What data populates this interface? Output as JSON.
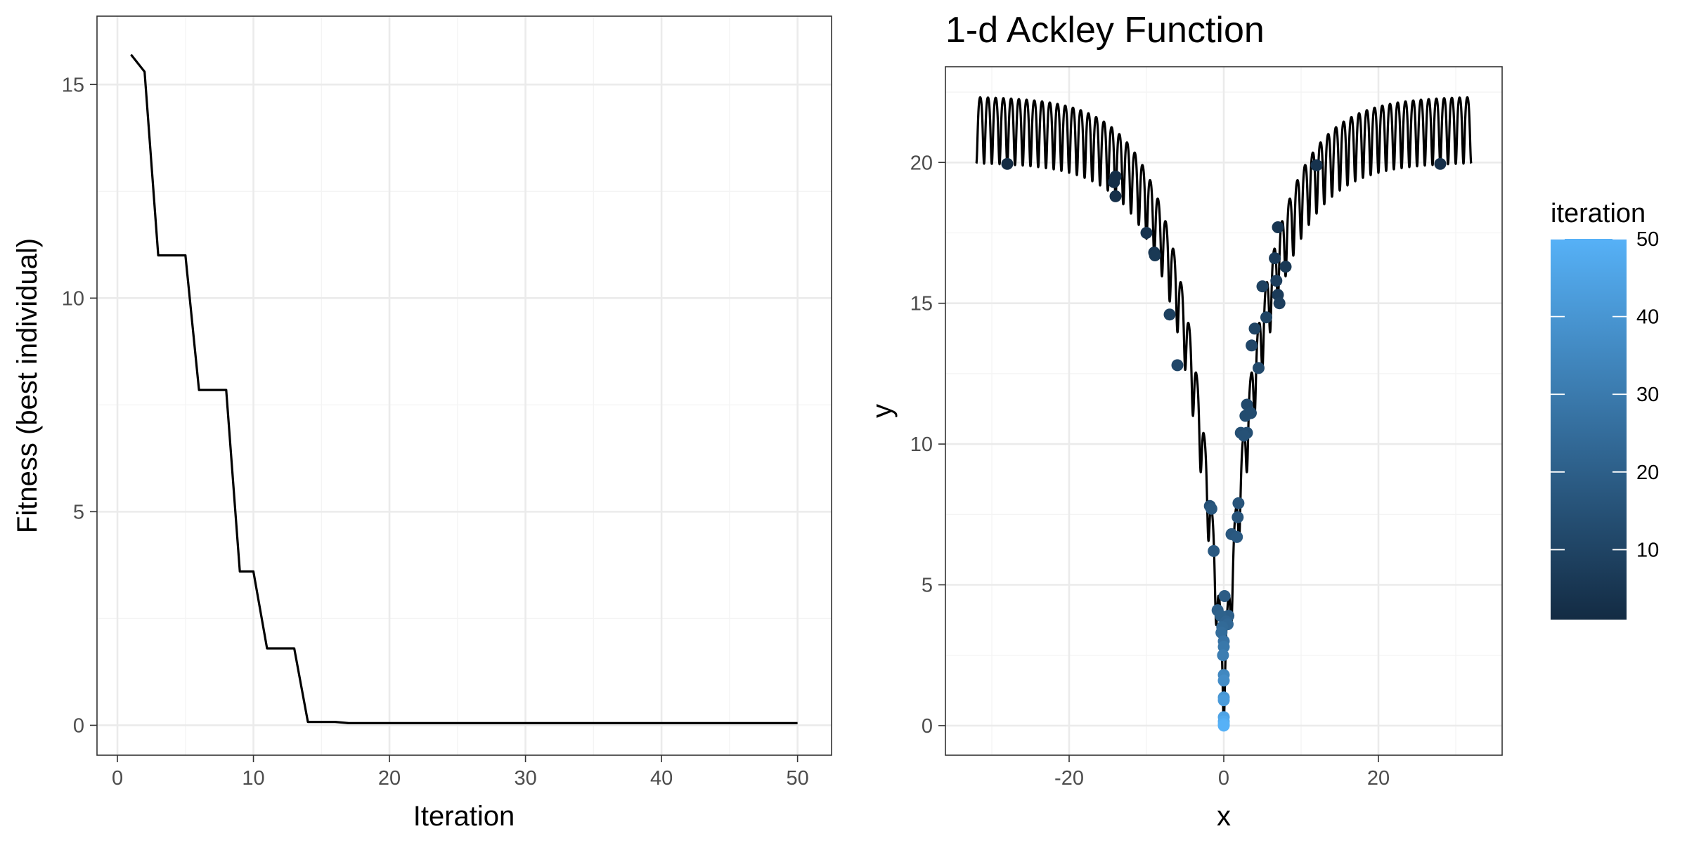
{
  "chart_data": [
    {
      "type": "line",
      "title": "",
      "xlabel": "Iteration",
      "ylabel": "Fitness (best individual)",
      "xlim": [
        -1.5,
        52.5
      ],
      "ylim": [
        -0.7,
        16.6
      ],
      "x_ticks": [
        0,
        10,
        20,
        30,
        40,
        50
      ],
      "y_ticks": [
        0,
        5,
        10,
        15
      ],
      "grid": true,
      "series": [
        {
          "x": [
            1,
            2,
            3,
            4,
            5,
            6,
            7,
            8,
            9,
            10,
            11,
            12,
            13,
            14,
            15,
            16,
            17,
            18,
            19,
            20,
            21,
            22,
            23,
            24,
            25,
            26,
            27,
            28,
            29,
            30,
            31,
            32,
            33,
            34,
            35,
            36,
            37,
            38,
            39,
            40,
            41,
            42,
            43,
            44,
            45,
            46,
            47,
            48,
            49,
            50
          ],
          "y": [
            15.7,
            15.3,
            11.0,
            11.0,
            11.0,
            7.85,
            7.85,
            7.85,
            3.6,
            3.6,
            1.8,
            1.8,
            1.8,
            0.08,
            0.08,
            0.08,
            0.05,
            0.05,
            0.05,
            0.05,
            0.05,
            0.05,
            0.05,
            0.05,
            0.05,
            0.05,
            0.05,
            0.05,
            0.05,
            0.05,
            0.05,
            0.05,
            0.05,
            0.05,
            0.05,
            0.05,
            0.05,
            0.05,
            0.05,
            0.05,
            0.05,
            0.05,
            0.05,
            0.05,
            0.05,
            0.05,
            0.05,
            0.05,
            0.05,
            0.05
          ],
          "color": "#000000"
        }
      ]
    },
    {
      "type": "scatter",
      "title": "1-d Ackley Function",
      "xlabel": "x",
      "ylabel": "y",
      "xlim": [
        -36,
        36
      ],
      "ylim": [
        -1.05,
        23.4
      ],
      "x_ticks": [
        -20,
        0,
        20
      ],
      "y_ticks": [
        0,
        5,
        10,
        15,
        20
      ],
      "grid": true,
      "curve": {
        "function": "ackley-1d",
        "x_range": [
          -32,
          32
        ],
        "color": "#000000"
      },
      "points": [
        {
          "x": -28.0,
          "y": 19.95,
          "iteration": 1
        },
        {
          "x": -14.0,
          "y": 19.5,
          "iteration": 2
        },
        {
          "x": -14.2,
          "y": 19.3,
          "iteration": 2
        },
        {
          "x": -14.0,
          "y": 18.8,
          "iteration": 3
        },
        {
          "x": 28.0,
          "y": 19.95,
          "iteration": 3
        },
        {
          "x": 12.0,
          "y": 19.9,
          "iteration": 4
        },
        {
          "x": -10.0,
          "y": 17.5,
          "iteration": 4
        },
        {
          "x": 7.0,
          "y": 17.7,
          "iteration": 5
        },
        {
          "x": -9.0,
          "y": 16.8,
          "iteration": 5
        },
        {
          "x": -8.9,
          "y": 16.7,
          "iteration": 6
        },
        {
          "x": 8.0,
          "y": 16.3,
          "iteration": 6
        },
        {
          "x": 6.6,
          "y": 16.6,
          "iteration": 7
        },
        {
          "x": 7.0,
          "y": 15.3,
          "iteration": 7
        },
        {
          "x": 7.2,
          "y": 15.0,
          "iteration": 8
        },
        {
          "x": 6.8,
          "y": 15.8,
          "iteration": 8
        },
        {
          "x": 5.0,
          "y": 15.6,
          "iteration": 9
        },
        {
          "x": -7.0,
          "y": 14.6,
          "iteration": 9
        },
        {
          "x": 5.5,
          "y": 14.5,
          "iteration": 10
        },
        {
          "x": 4.0,
          "y": 14.1,
          "iteration": 10
        },
        {
          "x": 3.6,
          "y": 13.5,
          "iteration": 11
        },
        {
          "x": -6.0,
          "y": 12.8,
          "iteration": 11
        },
        {
          "x": 4.5,
          "y": 12.7,
          "iteration": 12
        },
        {
          "x": 3.0,
          "y": 11.4,
          "iteration": 12
        },
        {
          "x": 2.8,
          "y": 11.0,
          "iteration": 13
        },
        {
          "x": 3.5,
          "y": 11.1,
          "iteration": 13
        },
        {
          "x": 2.2,
          "y": 10.4,
          "iteration": 14
        },
        {
          "x": 3.0,
          "y": 10.4,
          "iteration": 14
        },
        {
          "x": 2.6,
          "y": 10.3,
          "iteration": 15
        },
        {
          "x": -1.8,
          "y": 7.8,
          "iteration": 15
        },
        {
          "x": 1.9,
          "y": 7.9,
          "iteration": 16
        },
        {
          "x": 1.8,
          "y": 7.4,
          "iteration": 16
        },
        {
          "x": -1.6,
          "y": 7.7,
          "iteration": 17
        },
        {
          "x": 1.0,
          "y": 6.8,
          "iteration": 17
        },
        {
          "x": 1.7,
          "y": 6.7,
          "iteration": 18
        },
        {
          "x": -1.3,
          "y": 6.2,
          "iteration": 18
        },
        {
          "x": 0.1,
          "y": 4.6,
          "iteration": 19
        },
        {
          "x": -0.8,
          "y": 4.1,
          "iteration": 20
        },
        {
          "x": 0.6,
          "y": 3.9,
          "iteration": 20
        },
        {
          "x": -0.4,
          "y": 3.9,
          "iteration": 21
        },
        {
          "x": 0.3,
          "y": 3.7,
          "iteration": 22
        },
        {
          "x": 0.5,
          "y": 3.6,
          "iteration": 23
        },
        {
          "x": -0.2,
          "y": 3.5,
          "iteration": 24
        },
        {
          "x": -0.3,
          "y": 3.3,
          "iteration": 25
        },
        {
          "x": 0.0,
          "y": 3.0,
          "iteration": 27
        },
        {
          "x": 0.0,
          "y": 2.8,
          "iteration": 29
        },
        {
          "x": -0.1,
          "y": 2.5,
          "iteration": 31
        },
        {
          "x": 0.0,
          "y": 1.8,
          "iteration": 35
        },
        {
          "x": 0.0,
          "y": 1.6,
          "iteration": 37
        },
        {
          "x": 0.0,
          "y": 1.0,
          "iteration": 40
        },
        {
          "x": 0.0,
          "y": 0.9,
          "iteration": 42
        },
        {
          "x": 0.0,
          "y": 0.3,
          "iteration": 45
        },
        {
          "x": 0.0,
          "y": 0.15,
          "iteration": 47
        },
        {
          "x": 0.0,
          "y": 0.05,
          "iteration": 49
        },
        {
          "x": 0.0,
          "y": 0.0,
          "iteration": 50
        }
      ],
      "legend": {
        "title": "iteration",
        "type": "colorbar",
        "min": 1,
        "max": 50,
        "ticks": [
          10,
          20,
          30,
          40,
          50
        ],
        "low_color": "#132B43",
        "high_color": "#56B1F7",
        "placement": "right"
      }
    }
  ]
}
